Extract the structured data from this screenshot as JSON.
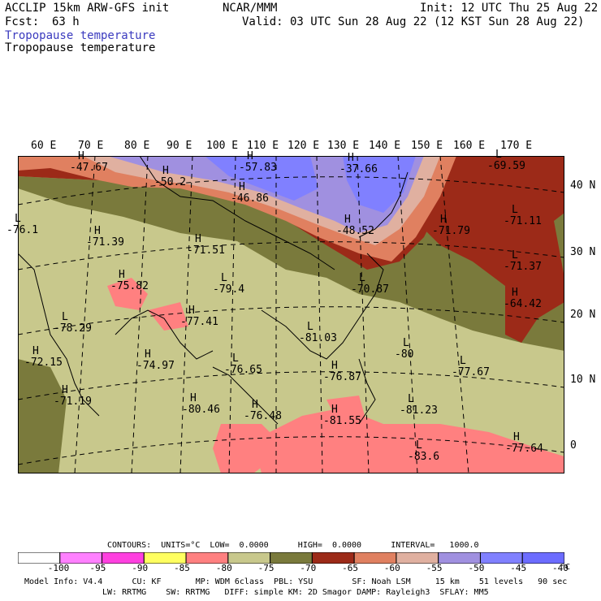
{
  "header": {
    "model": "ACCLIP 15km ARW-GFS init",
    "fcst_label": "Fcst:",
    "fcst_value": "63 h",
    "org": "NCAR/MMM",
    "init": "Init: 12 UTC Thu 25 Aug 22",
    "valid": "Valid: 03 UTC Sun 28 Aug 22 (12 KST Sun 28 Aug 22)",
    "field_line1": "Tropopause temperature",
    "field_line2": "Tropopause temperature"
  },
  "map": {
    "lon_labels": [
      "60 E",
      "70 E",
      "80 E",
      "90 E",
      "100 E",
      "110 E",
      "120 E",
      "130 E",
      "140 E",
      "150 E",
      "160 E",
      "170 E"
    ],
    "lat_labels": [
      "40 N",
      "30 N",
      "20 N",
      "10 N",
      "0"
    ],
    "highs_lows": [
      {
        "type": "H",
        "value": "-47.67"
      },
      {
        "type": "H",
        "value": "-50.2"
      },
      {
        "type": "H",
        "value": "-57.83"
      },
      {
        "type": "H",
        "value": "-46.86"
      },
      {
        "type": "H",
        "value": "-37.66"
      },
      {
        "type": "L",
        "value": "-69.59"
      },
      {
        "type": "L",
        "value": "-76.1"
      },
      {
        "type": "H",
        "value": "-71.39"
      },
      {
        "type": "H",
        "value": "-71.51"
      },
      {
        "type": "H",
        "value": "-48.52"
      },
      {
        "type": "H",
        "value": "-71.79"
      },
      {
        "type": "L",
        "value": "-71.11"
      },
      {
        "type": "L",
        "value": "-71.37"
      },
      {
        "type": "H",
        "value": "-75.82"
      },
      {
        "type": "L",
        "value": "-79.4"
      },
      {
        "type": "L",
        "value": "-70.87"
      },
      {
        "type": "H",
        "value": "-64.42"
      },
      {
        "type": "L",
        "value": "-78.29"
      },
      {
        "type": "H",
        "value": "-77.41"
      },
      {
        "type": "L",
        "value": "-81.03"
      },
      {
        "type": "L",
        "value": "-80"
      },
      {
        "type": "H",
        "value": "-72.15"
      },
      {
        "type": "H",
        "value": "-74.97"
      },
      {
        "type": "L",
        "value": "-76.65"
      },
      {
        "type": "H",
        "value": "-76.87"
      },
      {
        "type": "L",
        "value": "-77.67"
      },
      {
        "type": "H",
        "value": "-71.19"
      },
      {
        "type": "H",
        "value": "-80.46"
      },
      {
        "type": "H",
        "value": "-76.48"
      },
      {
        "type": "H",
        "value": "-81.55"
      },
      {
        "type": "L",
        "value": "-81.23"
      },
      {
        "type": "H",
        "value": "-77.64"
      },
      {
        "type": "L",
        "value": "-83.6"
      }
    ]
  },
  "footer": {
    "contours": "CONTOURS:  UNITS=°C  LOW=  0.0000      HIGH=  0.0000      INTERVAL=   1000.0",
    "model_info": "Model Info: V4.4      CU: KF       MP: WDM 6class  PBL: YSU        SF: Noah LSM     15 km    51 levels   90 sec",
    "model_info2": "LW: RRTMG    SW: RRTMG   DIFF: simple KM: 2D Smagor DAMP: Rayleigh3  SFLAY: MM5"
  },
  "colorbar": {
    "ticks": [
      "-100",
      "-95",
      "-90",
      "-85",
      "-80",
      "-75",
      "-70",
      "-65",
      "-60",
      "-55",
      "-50",
      "-45",
      "-40"
    ],
    "unit": "°C",
    "colors": [
      "#ffffff",
      "#ff80ff",
      "#ff40e0",
      "#ffff60",
      "#ff8080",
      "#c8c88c",
      "#7a7a3c",
      "#9c2a18",
      "#e08060",
      "#e0b0a0",
      "#a090e0",
      "#8080ff",
      "#6c6cff"
    ]
  }
}
